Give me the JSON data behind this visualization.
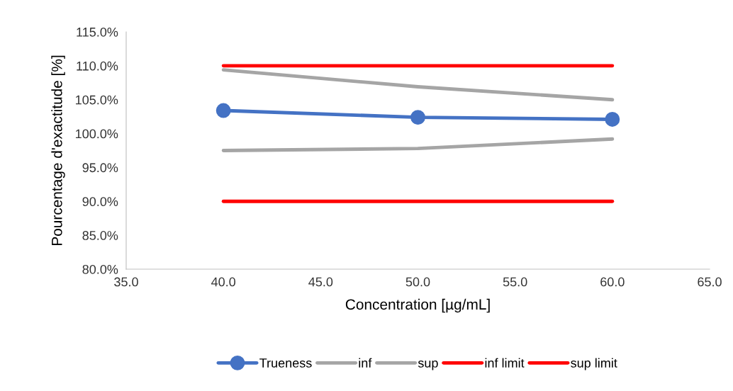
{
  "chart_data": {
    "type": "line",
    "xlabel": "Concentration [µg/mL]",
    "ylabel": "Pourcentage d'exactitude [%]",
    "x": [
      40,
      50,
      60
    ],
    "series": [
      {
        "name": "Trueness",
        "color": "#4472c4",
        "values": [
          103.4,
          102.4,
          102.1
        ],
        "marker": "circle"
      },
      {
        "name": "inf",
        "color": "#a5a5a5",
        "values": [
          97.5,
          97.8,
          99.2
        ]
      },
      {
        "name": "sup",
        "color": "#a5a5a5",
        "values": [
          109.4,
          106.9,
          105.0
        ]
      },
      {
        "name": "inf limit",
        "color": "#ff0000",
        "values": [
          90,
          90,
          90
        ]
      },
      {
        "name": "sup limit",
        "color": "#ff0000",
        "values": [
          110,
          110,
          110
        ]
      }
    ],
    "xlim": [
      35,
      65
    ],
    "xticks": [
      {
        "value": 35,
        "label": "35.0"
      },
      {
        "value": 40,
        "label": "40.0"
      },
      {
        "value": 45,
        "label": "45.0"
      },
      {
        "value": 50,
        "label": "50.0"
      },
      {
        "value": 55,
        "label": "55.0"
      },
      {
        "value": 60,
        "label": "60.0"
      },
      {
        "value": 65,
        "label": "65.0"
      }
    ],
    "ylim": [
      80,
      115
    ],
    "yticks": [
      {
        "value": 80,
        "label": "80.0%"
      },
      {
        "value": 85,
        "label": "85.0%"
      },
      {
        "value": 90,
        "label": "90.0%"
      },
      {
        "value": 95,
        "label": "95.0%"
      },
      {
        "value": 100,
        "label": "100.0%"
      },
      {
        "value": 105,
        "label": "105.0%"
      },
      {
        "value": 110,
        "label": "110.0%"
      },
      {
        "value": 115,
        "label": "115.0%"
      }
    ],
    "grid": false,
    "legend": "bottom",
    "line_style": "solid"
  }
}
